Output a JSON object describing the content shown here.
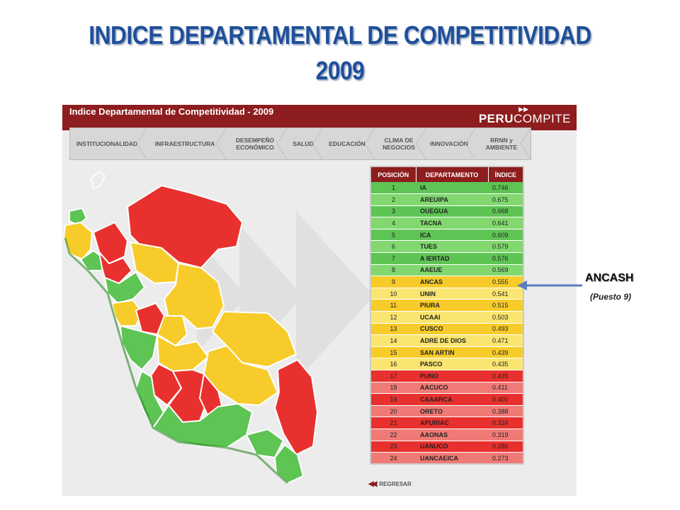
{
  "slide": {
    "title_line1": "INDICE DEPARTAMENTAL DE COMPETITIVIDAD",
    "title_line2": "2009"
  },
  "app": {
    "header_title": "Indice Departamental de Competitividad - 2009",
    "brand_peru": "PERU",
    "brand_compite": "COMPITE",
    "brand_mark": "▶▶"
  },
  "tabs": [
    {
      "label": "INSTITUCIONALIDAD"
    },
    {
      "label": "INFRAESTRUCTURA"
    },
    {
      "label": "DESEMPEÑO ECONÓMICO"
    },
    {
      "label": "SALUD"
    },
    {
      "label": "EDUCACIÓN"
    },
    {
      "label": "CLIMA DE NEGOCIOS"
    },
    {
      "label": "INNOVACIÓN"
    },
    {
      "label": "RRNN y AMBIENTE"
    }
  ],
  "table": {
    "headers": {
      "position": "POSICIÓN",
      "department": "DEPARTAMENTO",
      "index": "ÍNDICE"
    },
    "rows": [
      {
        "pos": "1",
        "dep": "IA",
        "idx": "0.746",
        "color": "green"
      },
      {
        "pos": "2",
        "dep": "AREUIPA",
        "idx": "0.675",
        "color": "green"
      },
      {
        "pos": "3",
        "dep": "OUEGUA",
        "idx": "0.668",
        "color": "green"
      },
      {
        "pos": "4",
        "dep": "TACNA",
        "idx": "0.641",
        "color": "green"
      },
      {
        "pos": "5",
        "dep": "ICA",
        "idx": "0.609",
        "color": "green"
      },
      {
        "pos": "6",
        "dep": "TUES",
        "idx": "0.579",
        "color": "green"
      },
      {
        "pos": "7",
        "dep": "A IERTAD",
        "idx": "0.576",
        "color": "green"
      },
      {
        "pos": "8",
        "dep": "AAEUE",
        "idx": "0.569",
        "color": "green"
      },
      {
        "pos": "9",
        "dep": "ANCAS",
        "idx": "0.555",
        "color": "yellow"
      },
      {
        "pos": "10",
        "dep": "UNIN",
        "idx": "0.541",
        "color": "yellow"
      },
      {
        "pos": "11",
        "dep": "PIURA",
        "idx": "0.515",
        "color": "yellow"
      },
      {
        "pos": "12",
        "dep": "UCAAI",
        "idx": "0.503",
        "color": "yellow"
      },
      {
        "pos": "13",
        "dep": "CUSCO",
        "idx": "0.493",
        "color": "yellow"
      },
      {
        "pos": "14",
        "dep": "ADRE DE DIOS",
        "idx": "0.471",
        "color": "yellow"
      },
      {
        "pos": "15",
        "dep": "SAN ARTIN",
        "idx": "0.439",
        "color": "yellow"
      },
      {
        "pos": "16",
        "dep": "PASCO",
        "idx": "0.435",
        "color": "yellow"
      },
      {
        "pos": "17",
        "dep": "PUNO",
        "idx": "0.435",
        "color": "red"
      },
      {
        "pos": "18",
        "dep": "AACUCO",
        "idx": "0.411",
        "color": "red"
      },
      {
        "pos": "19",
        "dep": "CAAARCA",
        "idx": "0.400",
        "color": "red"
      },
      {
        "pos": "20",
        "dep": "ORETO",
        "idx": "0.388",
        "color": "red"
      },
      {
        "pos": "21",
        "dep": "APURIAC",
        "idx": "0.324",
        "color": "red"
      },
      {
        "pos": "22",
        "dep": "AAONAS",
        "idx": "0.319",
        "color": "red"
      },
      {
        "pos": "23",
        "dep": "UANUCO",
        "idx": "0.286",
        "color": "red"
      },
      {
        "pos": "24",
        "dep": "UANCAEICA",
        "idx": "0.273",
        "color": "red"
      }
    ]
  },
  "back_button": {
    "label": "REGRESAR",
    "icon": "double-left-arrow-icon"
  },
  "callout": {
    "name": "ANCASH",
    "rank": "(Puesto 9)",
    "arrow_color": "#5b7fbd"
  },
  "colors": {
    "brand": "#8d1d1e",
    "title": "#1f4f9a",
    "green": "#5ec454",
    "yellow": "#f7cc2a",
    "red": "#e8312e"
  }
}
